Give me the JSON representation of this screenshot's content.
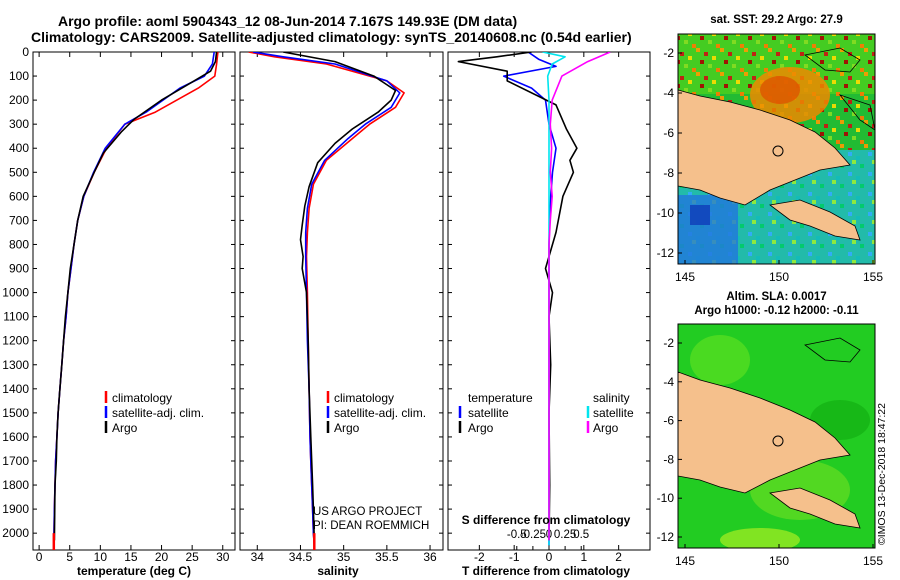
{
  "titles": {
    "line1": "Argo profile: aoml 5904343_12 08-Jun-2014 7.167S 149.93E (DM data)",
    "line2": "Climatology: CARS2009. Satellite-adjusted climatology: synTS_20140608.nc (0.54d earlier)"
  },
  "colors": {
    "climatology": "#ff0000",
    "satellite": "#0000ff",
    "argo": "#000000",
    "t_satellite": "#0000ff",
    "s_satellite": "#00e5ee",
    "s_argo": "#ff00ff",
    "land": "#f5c08c"
  },
  "chart_data": [
    {
      "type": "line",
      "title": "",
      "xlabel": "temperature (deg C)",
      "ylabel": "",
      "xlim": [
        -1,
        32
      ],
      "ylim": [
        2070,
        0
      ],
      "xticks": [
        0,
        5,
        10,
        15,
        20,
        25,
        30
      ],
      "yticks": [
        0,
        100,
        200,
        300,
        400,
        500,
        600,
        700,
        800,
        900,
        1000,
        1100,
        1200,
        1300,
        1400,
        1500,
        1600,
        1700,
        1800,
        1900,
        2000
      ],
      "series": [
        {
          "name": "climatology",
          "color": "#ff0000",
          "x": [
            29.2,
            29.0,
            28.7,
            26.0,
            19.0,
            14.0,
            11.0,
            9.0,
            7.3,
            6.3,
            5.7,
            5.2,
            4.7,
            4.4,
            4.0,
            3.7,
            3.4,
            3.1,
            2.9,
            2.7,
            2.6,
            2.5,
            2.4
          ],
          "y": [
            0,
            50,
            100,
            150,
            250,
            300,
            400,
            500,
            600,
            700,
            800,
            900,
            1000,
            1100,
            1200,
            1300,
            1400,
            1500,
            1600,
            1700,
            1800,
            1900,
            2050
          ]
        },
        {
          "name": "satellite-adj. clim.",
          "color": "#0000ff",
          "x": [
            28.6,
            28.3,
            27.0,
            23.0,
            17.5,
            14.0,
            10.8,
            8.9,
            7.3,
            6.3,
            5.7,
            5.2,
            4.7,
            4.4,
            4.0,
            3.7,
            3.4,
            3.1,
            2.9,
            2.7,
            2.6,
            2.5,
            2.4
          ],
          "y": [
            0,
            50,
            100,
            150,
            250,
            300,
            400,
            500,
            600,
            700,
            800,
            900,
            1000,
            1100,
            1200,
            1300,
            1400,
            1500,
            1600,
            1700,
            1800,
            1900,
            2050
          ]
        },
        {
          "name": "Argo",
          "color": "#000000",
          "x": [
            29.0,
            28.8,
            28.0,
            24.0,
            20.0,
            15.5,
            13.5,
            10.5,
            9.0,
            7.2,
            6.3,
            5.7,
            5.1,
            4.7,
            4.3,
            4.0,
            3.7,
            3.4,
            3.1,
            2.9,
            2.8,
            2.6,
            2.5
          ],
          "y": [
            0,
            40,
            80,
            140,
            200,
            280,
            330,
            420,
            500,
            600,
            700,
            800,
            900,
            1000,
            1100,
            1200,
            1300,
            1400,
            1500,
            1600,
            1700,
            1800,
            2030
          ]
        }
      ]
    },
    {
      "type": "line",
      "title": "",
      "xlabel": "salinity",
      "ylabel": "",
      "xlim": [
        33.8,
        36.15
      ],
      "ylim": [
        2070,
        0
      ],
      "xticks": [
        34,
        34.5,
        35,
        35.5,
        36
      ],
      "series": [
        {
          "name": "climatology",
          "color": "#ff0000",
          "x": [
            33.9,
            34.2,
            34.8,
            35.5,
            35.7,
            35.6,
            35.3,
            35.1,
            34.8,
            34.65,
            34.6,
            34.58,
            34.57,
            34.58,
            34.59,
            34.6,
            34.61,
            34.62,
            34.63,
            34.64,
            34.65,
            34.66
          ],
          "y": [
            0,
            20,
            50,
            120,
            170,
            230,
            300,
            360,
            450,
            550,
            650,
            750,
            850,
            1000,
            1200,
            1400,
            1600,
            1700,
            1800,
            1900,
            2000,
            2050
          ]
        },
        {
          "name": "satellite-adj. clim.",
          "color": "#0000ff",
          "x": [
            33.95,
            34.3,
            34.9,
            35.5,
            35.65,
            35.55,
            35.25,
            35.05,
            34.78,
            34.63,
            34.58,
            34.56,
            34.56,
            34.57,
            34.58,
            34.6,
            34.61,
            34.62,
            34.63,
            34.64,
            34.65,
            34.66
          ],
          "y": [
            0,
            20,
            50,
            120,
            170,
            230,
            300,
            360,
            450,
            550,
            650,
            750,
            850,
            1000,
            1200,
            1400,
            1600,
            1700,
            1800,
            1900,
            2000,
            2050
          ]
        },
        {
          "name": "Argo",
          "color": "#000000",
          "x": [
            34.3,
            34.9,
            35.35,
            35.6,
            35.55,
            35.4,
            35.1,
            34.9,
            34.7,
            34.6,
            34.55,
            34.52,
            34.5,
            34.53,
            34.52,
            34.57,
            34.59,
            34.6,
            34.62,
            34.63,
            34.64,
            34.65,
            34.66
          ],
          "y": [
            0,
            40,
            100,
            160,
            200,
            250,
            320,
            380,
            460,
            560,
            640,
            720,
            780,
            850,
            900,
            1000,
            1200,
            1400,
            1600,
            1700,
            1800,
            1900,
            2030
          ]
        }
      ]
    },
    {
      "type": "line",
      "title": "",
      "xlabel": "T difference from climatology",
      "ylabel": "",
      "xlim": [
        -2.9,
        2.9
      ],
      "ylim": [
        2070,
        0
      ],
      "xticks": [
        -2,
        -1,
        0,
        1,
        2
      ],
      "xlabel2": "S difference from climatology",
      "xticks2_labels": [
        "-0.5",
        "-0.25",
        "0",
        "0.25",
        "0.5"
      ],
      "xticks2_values": [
        -0.5,
        -0.25,
        0,
        0.25,
        0.5
      ],
      "series": [
        {
          "name": "temperature satellite",
          "color": "#0000ff",
          "units": "T",
          "x": [
            -0.6,
            -0.3,
            0.2,
            -1.3,
            -0.5,
            -0.1,
            0.0,
            0.2,
            0.1,
            0.05,
            0.02,
            0.0,
            0.0,
            0.0,
            0.0,
            0.0,
            0.0
          ],
          "y": [
            0,
            30,
            60,
            100,
            150,
            200,
            300,
            400,
            500,
            600,
            700,
            800,
            1000,
            1200,
            1500,
            1800,
            2050
          ]
        },
        {
          "name": "temperature Argo",
          "color": "#000000",
          "units": "T",
          "x": [
            -0.5,
            -1.5,
            -2.6,
            -1.2,
            -1.2,
            0.2,
            0.5,
            0.8,
            0.6,
            0.7,
            0.4,
            0.2,
            -0.1,
            0.1,
            0.0,
            0.05,
            0.0,
            0.02,
            0.0
          ],
          "y": [
            0,
            20,
            40,
            80,
            120,
            220,
            320,
            400,
            450,
            500,
            600,
            750,
            900,
            1000,
            1100,
            1300,
            1500,
            1800,
            2030
          ]
        },
        {
          "name": "salinity satellite",
          "color": "#00e5ee",
          "units": "S",
          "x": [
            -0.1,
            0.25,
            0.05,
            -0.02,
            0.0,
            0.0,
            0.0,
            0.0,
            0.0,
            0.0,
            0.0,
            0.0,
            0.0
          ],
          "y": [
            0,
            20,
            50,
            100,
            200,
            400,
            600,
            800,
            1000,
            1200,
            1500,
            1800,
            2050
          ]
        },
        {
          "name": "salinity Argo",
          "color": "#ff00ff",
          "units": "S",
          "x": [
            0.95,
            0.6,
            0.2,
            0.05,
            0.02,
            0.04,
            0.02,
            0.05,
            0.02,
            0.0,
            0.0,
            0.0,
            0.0
          ],
          "y": [
            0,
            40,
            100,
            200,
            300,
            400,
            500,
            600,
            700,
            800,
            1000,
            1500,
            2030
          ]
        }
      ]
    }
  ],
  "legends": {
    "t_panel": [
      "climatology",
      "satellite-adj. clim.",
      "Argo"
    ],
    "s_panel": [
      "climatology",
      "satellite-adj. clim.",
      "Argo"
    ],
    "d_panel_left_header": "temperature",
    "d_panel_left": [
      "satellite",
      "Argo"
    ],
    "d_panel_right_header": "salinity",
    "d_panel_right": [
      "satellite",
      "Argo"
    ]
  },
  "maps": {
    "sst_title": "sat. SST: 29.2 Argo: 27.9",
    "sla_title1": "Altim. SLA: 0.0017",
    "sla_title2": "Argo h1000: -0.12 h2000: -0.11",
    "lat_ticks": [
      "-2",
      "-4",
      "-6",
      "-8",
      "-10",
      "-12"
    ],
    "lon_ticks": [
      "145",
      "150",
      "155"
    ]
  },
  "credits": {
    "line1": "US ARGO PROJECT",
    "line2": "PI: DEAN ROEMMICH",
    "side": "©IMOS 13-Dec-2018 18:47:22"
  }
}
